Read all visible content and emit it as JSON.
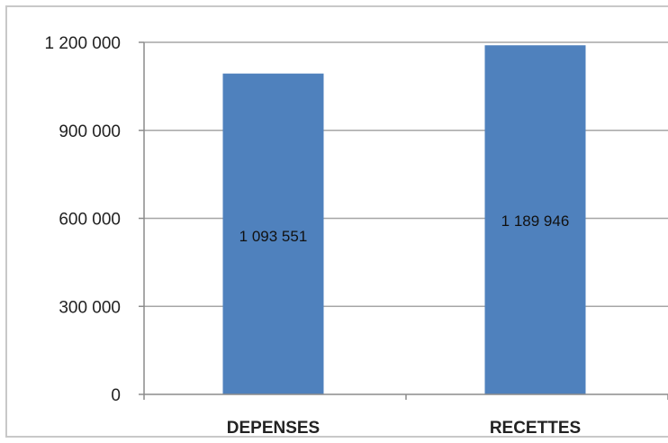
{
  "chart_data": {
    "type": "bar",
    "title": "",
    "xlabel": "",
    "ylabel": "",
    "categories": [
      "DEPENSES",
      "RECETTES"
    ],
    "values": [
      1093551,
      1189946
    ],
    "data_labels": [
      "1 093 551",
      "1 189 946"
    ],
    "ylim": [
      0,
      1200000
    ],
    "yticks": [
      0,
      300000,
      600000,
      900000,
      1200000
    ],
    "ytick_labels": [
      "0",
      "300 000",
      "600 000",
      "900 000",
      "1 200 000"
    ],
    "grid": true,
    "legend": "none",
    "bar_color": "#4f81bd",
    "grid_color": "#a6a6a6"
  }
}
